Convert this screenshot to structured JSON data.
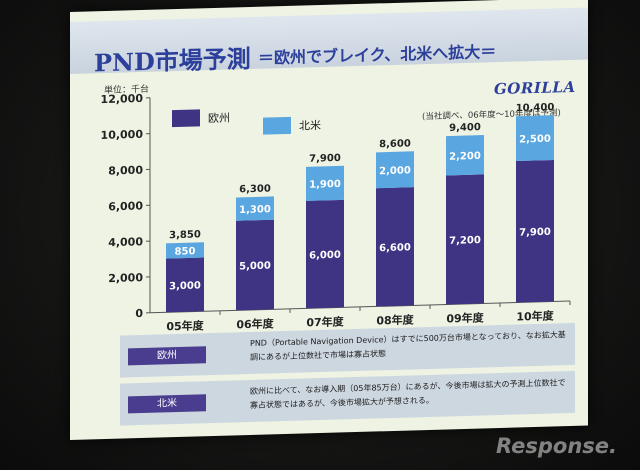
{
  "title": "PND市場予測",
  "subtitle": "＝欧州でブレイク、北米へ拡大＝",
  "unit_label": "単位：千台",
  "logo_text": "GORILLA",
  "note": "(当社調べ、06年度～10年度は予測)",
  "watermark": "Response.",
  "colors": {
    "europe": "#3f3384",
    "north_america": "#5aa6e0",
    "axis": "#555555"
  },
  "chart_data": {
    "type": "bar",
    "stacked": true,
    "categories": [
      "05年度",
      "06年度",
      "07年度",
      "08年度",
      "09年度",
      "10年度"
    ],
    "series": [
      {
        "name": "欧州",
        "values": [
          3000,
          5000,
          6000,
          6600,
          7200,
          7900
        ],
        "value_labels": [
          "3,000",
          "5,000",
          "6,000",
          "6,600",
          "7,200",
          "7,900"
        ]
      },
      {
        "name": "北米",
        "values": [
          850,
          1300,
          1900,
          2000,
          2200,
          2500
        ],
        "value_labels": [
          "850",
          "1,300",
          "1,900",
          "2,000",
          "2,200",
          "2,500"
        ]
      }
    ],
    "totals": [
      3850,
      6300,
      7900,
      8600,
      9400,
      10400
    ],
    "total_labels": [
      "3,850",
      "6,300",
      "7,900",
      "8,600",
      "9,400",
      "10,400"
    ],
    "ylim": [
      0,
      12000
    ],
    "yticks": [
      0,
      2000,
      4000,
      6000,
      8000,
      10000,
      12000
    ],
    "ytick_labels": [
      "0",
      "2,000",
      "4,000",
      "6,000",
      "8,000",
      "10,000",
      "12,000"
    ],
    "legend_position": "top-left",
    "grid": false
  },
  "info": [
    {
      "tag": "欧州",
      "text": "PND（Portable Navigation Device）はすでに500万台市場となっており、なお拡大基調にあるが上位数社で市場は寡占状態"
    },
    {
      "tag": "北米",
      "text": "欧州に比べて、なお導入期（05年85万台）にあるが、今後市場は拡大の予測上位数社で寡占状態ではあるが、今後市場拡大が予想される。"
    }
  ]
}
